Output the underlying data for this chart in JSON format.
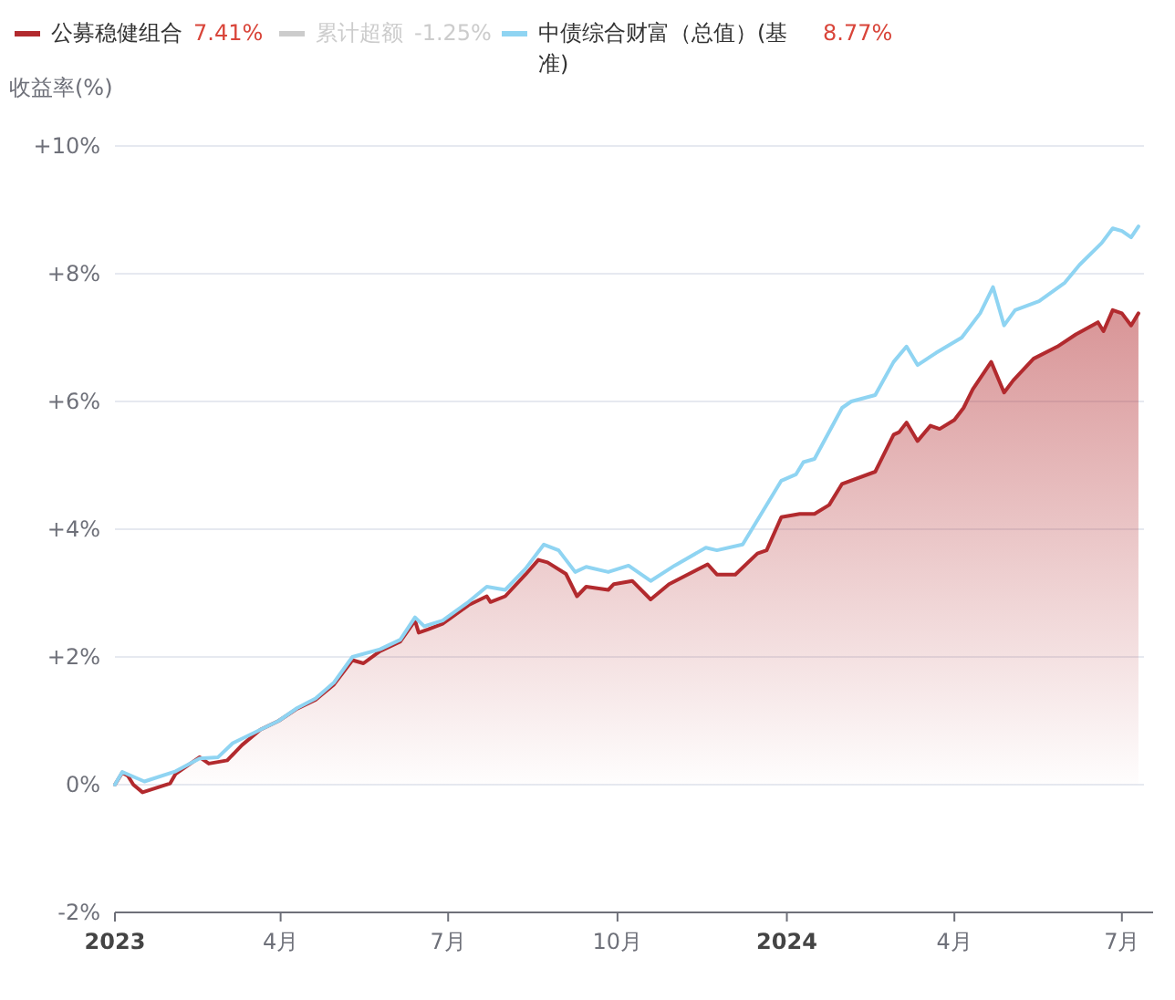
{
  "chart_data": {
    "type": "line",
    "ylabel": "收益率(%)",
    "series": [
      {
        "name": "公募稳健组合",
        "type": "area",
        "color": "#b22a2e",
        "x": [
          "2023-01-01",
          "2023-01-05",
          "2023-01-08",
          "2023-01-11",
          "2023-01-16",
          "2023-01-31",
          "2023-02-03",
          "2023-02-16",
          "2023-02-21",
          "2023-03-03",
          "2023-03-11",
          "2023-03-21",
          "2023-03-31",
          "2023-04-10",
          "2023-04-20",
          "2023-04-30",
          "2023-05-10",
          "2023-05-16",
          "2023-05-25",
          "2023-06-05",
          "2023-06-13",
          "2023-06-15",
          "2023-06-20",
          "2023-06-28",
          "2023-07-12",
          "2023-07-22",
          "2023-07-24",
          "2023-08-01",
          "2023-08-12",
          "2023-08-19",
          "2023-08-24",
          "2023-09-03",
          "2023-09-09",
          "2023-09-14",
          "2023-09-26",
          "2023-09-29",
          "2023-10-09",
          "2023-10-19",
          "2023-10-29",
          "2023-11-19",
          "2023-11-24",
          "2023-12-04",
          "2023-12-16",
          "2023-12-21",
          "2023-12-29",
          "2024-01-08",
          "2024-01-16",
          "2024-01-24",
          "2024-01-31",
          "2024-02-18",
          "2024-02-28",
          "2024-03-02",
          "2024-03-06",
          "2024-03-12",
          "2024-03-19",
          "2024-03-24",
          "2024-04-01",
          "2024-04-06",
          "2024-04-11",
          "2024-04-21",
          "2024-04-28",
          "2024-05-03",
          "2024-05-14",
          "2024-05-27",
          "2024-06-06",
          "2024-06-18",
          "2024-06-21",
          "2024-06-26",
          "2024-07-01",
          "2024-07-06",
          "2024-07-10"
        ],
        "values": [
          0,
          0.19,
          0.14,
          0.0,
          -0.12,
          0.02,
          0.17,
          0.43,
          0.33,
          0.38,
          0.62,
          0.86,
          1.0,
          1.19,
          1.33,
          1.57,
          1.95,
          1.9,
          2.09,
          2.24,
          2.57,
          2.38,
          2.43,
          2.52,
          2.81,
          2.95,
          2.86,
          2.95,
          3.29,
          3.52,
          3.48,
          3.3,
          2.95,
          3.1,
          3.05,
          3.14,
          3.19,
          2.9,
          3.14,
          3.45,
          3.29,
          3.29,
          3.62,
          3.67,
          4.19,
          4.24,
          4.24,
          4.38,
          4.71,
          4.9,
          5.48,
          5.52,
          5.67,
          5.38,
          5.62,
          5.57,
          5.71,
          5.9,
          6.19,
          6.62,
          6.14,
          6.33,
          6.67,
          6.86,
          7.05,
          7.24,
          7.1,
          7.43,
          7.38,
          7.19,
          7.38
        ]
      },
      {
        "name": "累计超额",
        "type": "line",
        "color": "#cccccc"
      },
      {
        "name": "中债综合财富（总值）(基准)",
        "type": "line",
        "color": "#8fd4f2",
        "x": [
          "2023-01-01",
          "2023-01-05",
          "2023-01-17",
          "2023-02-03",
          "2023-02-16",
          "2023-02-26",
          "2023-03-06",
          "2023-03-21",
          "2023-03-31",
          "2023-04-10",
          "2023-04-20",
          "2023-04-30",
          "2023-05-10",
          "2023-05-25",
          "2023-06-05",
          "2023-06-13",
          "2023-06-18",
          "2023-06-28",
          "2023-07-12",
          "2023-07-22",
          "2023-08-01",
          "2023-08-12",
          "2023-08-22",
          "2023-08-30",
          "2023-09-08",
          "2023-09-14",
          "2023-09-26",
          "2023-10-07",
          "2023-10-19",
          "2023-11-01",
          "2023-11-18",
          "2023-11-24",
          "2023-12-08",
          "2023-12-17",
          "2023-12-29",
          "2024-01-06",
          "2024-01-10",
          "2024-01-16",
          "2024-01-31",
          "2024-02-05",
          "2024-02-18",
          "2024-02-28",
          "2024-03-06",
          "2024-03-12",
          "2024-03-22",
          "2024-04-05",
          "2024-04-15",
          "2024-04-22",
          "2024-04-28",
          "2024-05-04",
          "2024-05-17",
          "2024-05-31",
          "2024-06-08",
          "2024-06-20",
          "2024-06-26",
          "2024-07-01",
          "2024-07-06",
          "2024-07-10"
        ],
        "values": [
          0,
          0.2,
          0.05,
          0.21,
          0.41,
          0.43,
          0.65,
          0.86,
          1.0,
          1.2,
          1.35,
          1.6,
          2.0,
          2.12,
          2.27,
          2.62,
          2.48,
          2.57,
          2.86,
          3.1,
          3.05,
          3.38,
          3.76,
          3.67,
          3.33,
          3.41,
          3.33,
          3.43,
          3.19,
          3.43,
          3.71,
          3.67,
          3.76,
          4.19,
          4.76,
          4.86,
          5.05,
          5.1,
          5.9,
          6.0,
          6.1,
          6.62,
          6.86,
          6.57,
          6.76,
          7.0,
          7.38,
          7.79,
          7.19,
          7.43,
          7.57,
          7.86,
          8.14,
          8.48,
          8.71,
          8.67,
          8.57,
          8.74
        ]
      }
    ],
    "annotations": [
      "7.41%",
      "-1.25%",
      "8.77%"
    ],
    "xlim": [
      "2023-01-01",
      "2024-07-13"
    ],
    "xticks": [
      {
        "value": "2023-01-01",
        "label": "2023"
      },
      {
        "value": "2023-04-01",
        "label": "4月"
      },
      {
        "value": "2023-07-01",
        "label": "7月"
      },
      {
        "value": "2023-10-01",
        "label": "10月"
      },
      {
        "value": "2024-01-01",
        "label": "2024"
      },
      {
        "value": "2024-04-01",
        "label": "4月"
      },
      {
        "value": "2024-07-01",
        "label": "7月"
      }
    ],
    "ylim": [
      -2,
      10
    ],
    "yticks": [
      {
        "value": -2,
        "label": "-2%"
      },
      {
        "value": 0,
        "label": "0%"
      },
      {
        "value": 2,
        "label": "+2%"
      },
      {
        "value": 4,
        "label": "+4%"
      },
      {
        "value": 6,
        "label": "+6%"
      },
      {
        "value": 8,
        "label": "+8%"
      },
      {
        "value": 10,
        "label": "+10%"
      }
    ],
    "grid": "y",
    "legend": "top left"
  }
}
